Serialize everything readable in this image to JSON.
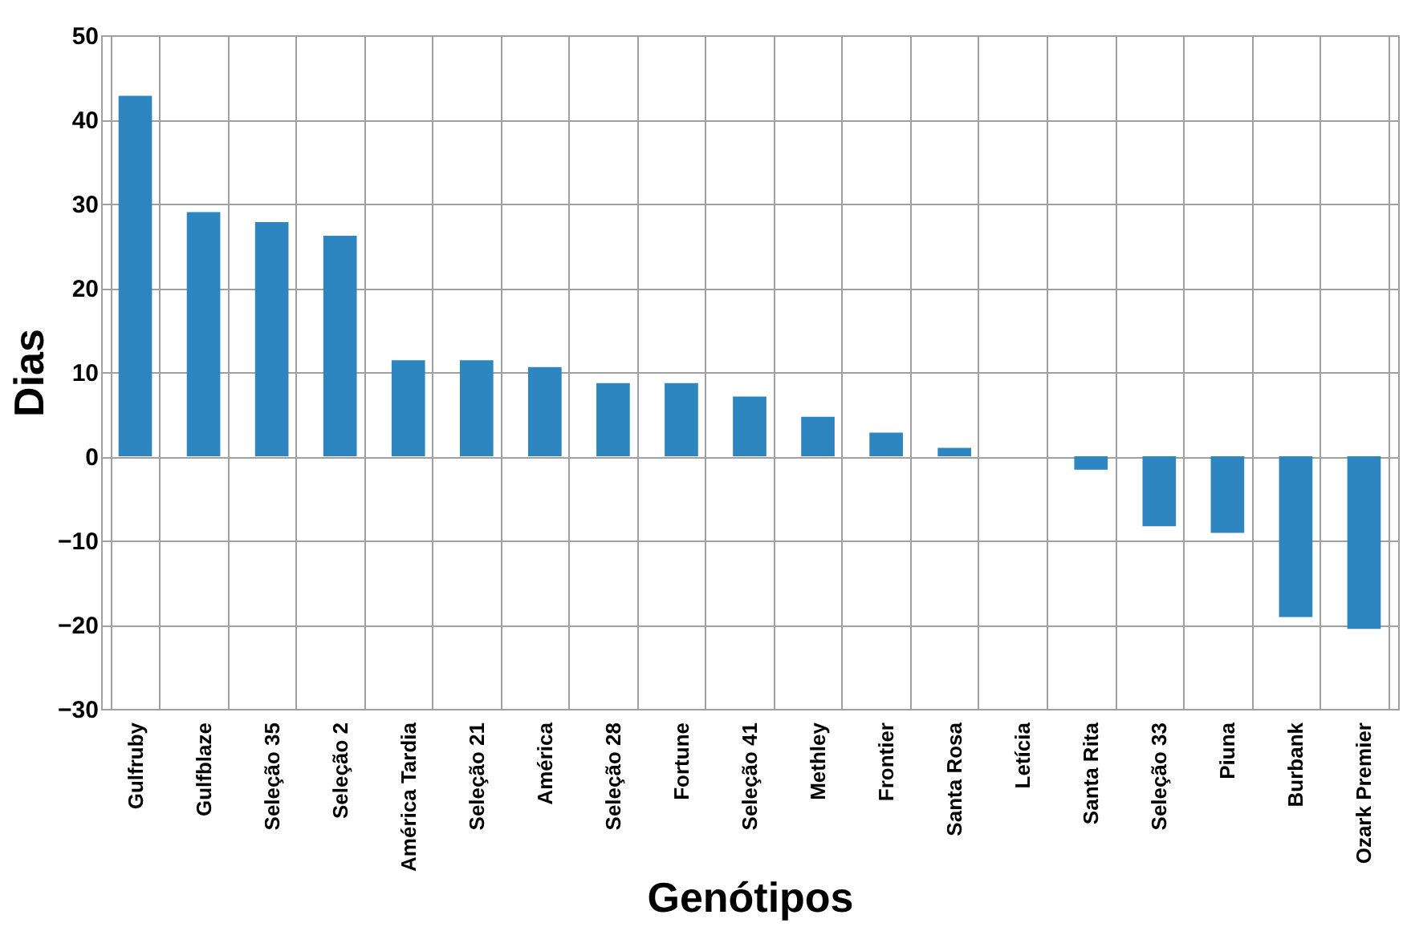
{
  "chart_data": {
    "type": "bar",
    "xlabel": "Genótipos",
    "ylabel": "Dias",
    "categories": [
      "Gulfruby",
      "Gulfblaze",
      "Seleção 35",
      "Seleção 2",
      "América Tardia",
      "Seleção 21",
      "América",
      "Seleção 28",
      "Fortune",
      "Seleção 41",
      "Methley",
      "Frontier",
      "Santa Rosa",
      "Letícia",
      "Santa Rita",
      "Seleção 33",
      "Piuna",
      "Burbank",
      "Ozark Premier"
    ],
    "values": [
      42.8,
      29,
      27.8,
      26.2,
      11.4,
      11.4,
      10.6,
      8.7,
      8.7,
      7.1,
      4.7,
      2.8,
      1,
      0,
      -1.6,
      -8.3,
      -9.1,
      -19.1,
      -20.5
    ],
    "color": "#2e86c1",
    "ylim": [
      -30,
      50
    ],
    "yticks": [
      -30,
      -20,
      -10,
      0,
      10,
      20,
      30,
      40,
      50
    ],
    "grid": true
  }
}
